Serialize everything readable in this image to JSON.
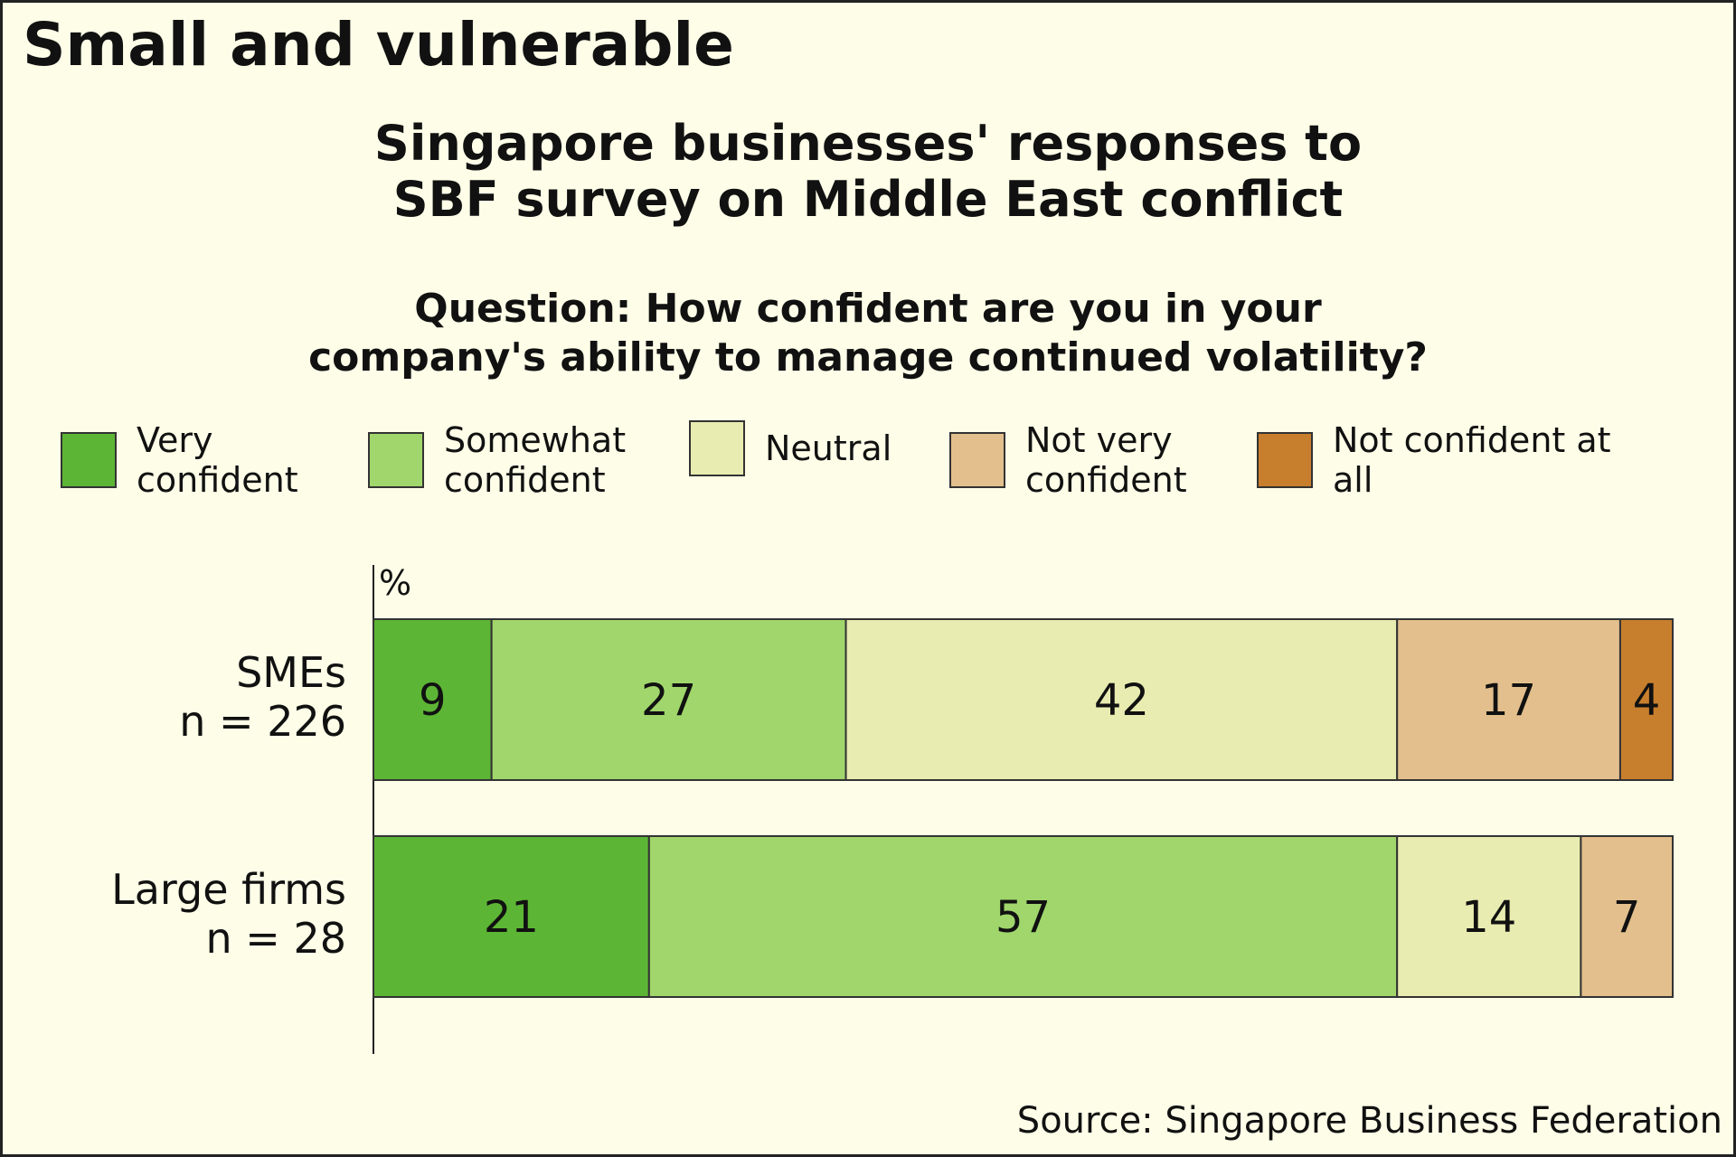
{
  "chart_data": {
    "type": "stacked_barh",
    "title": "Small and vulnerable",
    "subtitle": [
      "Singapore businesses' responses to",
      "SBF survey on Middle East conflict"
    ],
    "question": [
      "Question: How confident are you in your",
      "company's ability to manage continued volatility?"
    ],
    "unit_label": "%",
    "source": "Source: Singapore Business Federation",
    "categories": [
      [
        "SMEs",
        "n = 226"
      ],
      [
        "Large firms",
        "n = 28"
      ]
    ],
    "series": [
      {
        "name": "Very confident",
        "color": "#5db535",
        "values": [
          9,
          21
        ]
      },
      {
        "name": "Somewhat confident",
        "color": "#a0d66b",
        "values": [
          27,
          57
        ]
      },
      {
        "name": "Neutral",
        "color": "#e8ecb0",
        "values": [
          42,
          14
        ]
      },
      {
        "name": "Not very confident",
        "color": "#e2bf8c",
        "values": [
          17,
          7
        ]
      },
      {
        "name": "Not confident at all",
        "color": "#c87f2d",
        "values": [
          4,
          null
        ]
      }
    ],
    "xlim": [
      0,
      99
    ]
  }
}
